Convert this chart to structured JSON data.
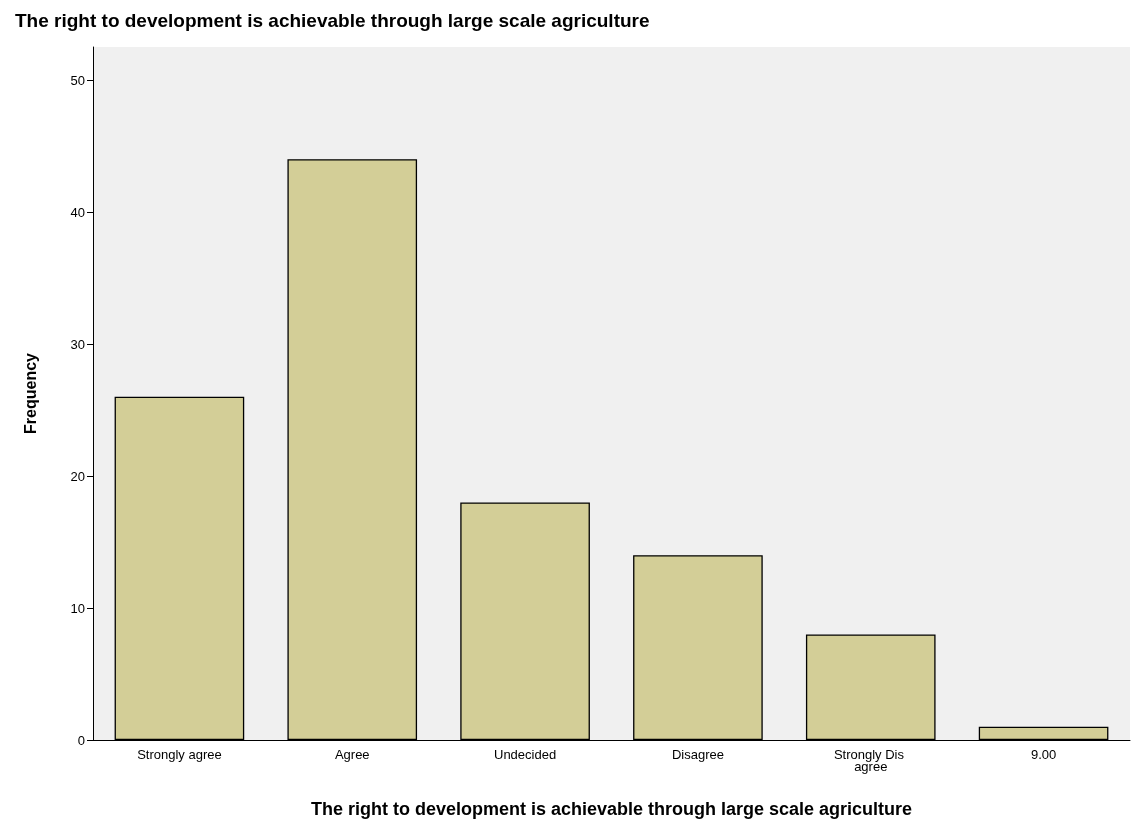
{
  "chart_data": {
    "type": "bar",
    "title": "The right to development is achievable through large scale agriculture",
    "xlabel": "The right to development is achievable through large scale agriculture",
    "ylabel": "Frequency",
    "categories": [
      "Strongly agree",
      "Agree",
      "Undecided",
      "Disagree",
      "Strongly Dis agree",
      "9.00"
    ],
    "values": [
      26,
      44,
      18,
      14,
      8,
      1
    ],
    "color": "#d3ce97",
    "ylim": [
      0,
      52.5
    ],
    "yticks": [
      0,
      10,
      20,
      30,
      40,
      50
    ],
    "grid": false
  }
}
